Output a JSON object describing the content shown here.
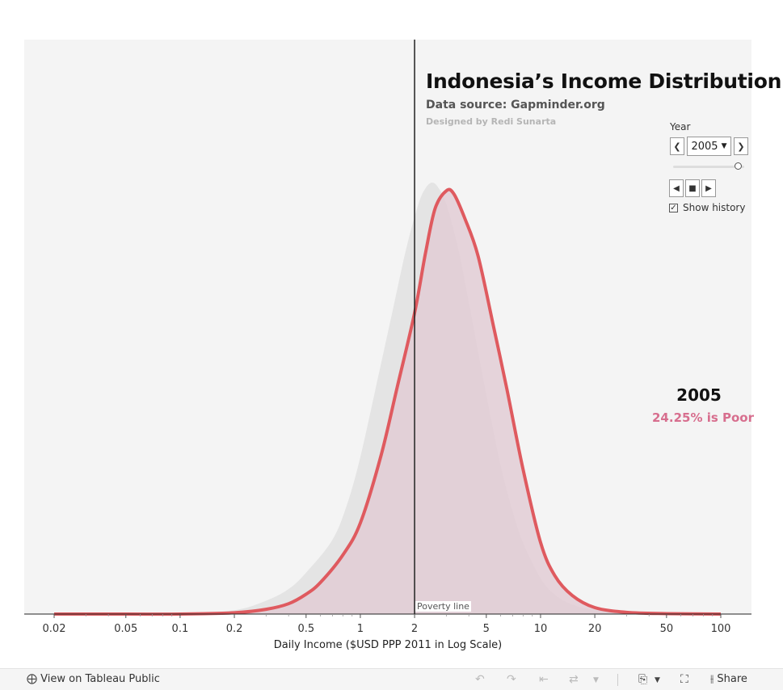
{
  "header": {
    "title": "Indonesia’s Income Distribution",
    "subtitle": "Data source: Gapminder.org",
    "credit": "Designed by Redi Sunarta"
  },
  "controls": {
    "year_label": "Year",
    "year_value": "2005",
    "slider_fraction": 0.92,
    "show_history_label": "Show history",
    "show_history_checked": true
  },
  "summary": {
    "year": "2005",
    "poor_text": "24.25% is Poor"
  },
  "toolbar": {
    "view_label": "View on Tableau Public",
    "share_label": "Share"
  },
  "colors": {
    "plot_background": "#f4f4f4",
    "history_fill": "#e4e4e4",
    "current_fill": "#e2cdd5",
    "current_line": "#df5a5f",
    "poverty_line": "#222222",
    "poor_text": "#d76e8e"
  },
  "chart_data": {
    "type": "area",
    "xlabel": "Daily Income ($USD PPP 2011 in Log Scale)",
    "ylabel": "",
    "x_scale": "log",
    "xlim": [
      0.015,
      125
    ],
    "x_ticks": [
      0.02,
      0.05,
      0.1,
      0.2,
      0.5,
      1,
      2,
      5,
      10,
      20,
      50,
      100
    ],
    "x_tick_labels": [
      "0.02",
      "0.05",
      "0.1",
      "0.2",
      "0.5",
      "1",
      "2",
      "5",
      "10",
      "20",
      "50",
      "100"
    ],
    "ylim": [
      0,
      1
    ],
    "grid": false,
    "poverty_line": {
      "x": 2,
      "label": "Poverty line"
    },
    "series": [
      {
        "name": "",
        "role": "history",
        "points": [
          [
            0.02,
            0
          ],
          [
            0.05,
            0
          ],
          [
            0.1,
            0.001
          ],
          [
            0.2,
            0.009
          ],
          [
            0.3,
            0.031
          ],
          [
            0.4,
            0.058
          ],
          [
            0.5,
            0.096
          ],
          [
            0.7,
            0.172
          ],
          [
            0.85,
            0.258
          ],
          [
            1,
            0.364
          ],
          [
            1.2,
            0.512
          ],
          [
            1.5,
            0.697
          ],
          [
            1.8,
            0.848
          ],
          [
            2.1,
            0.95
          ],
          [
            2.3,
            0.987
          ],
          [
            2.5,
            1.0
          ],
          [
            2.7,
            0.989
          ],
          [
            3,
            0.95
          ],
          [
            3.5,
            0.845
          ],
          [
            4,
            0.722
          ],
          [
            5,
            0.508
          ],
          [
            6,
            0.345
          ],
          [
            7,
            0.238
          ],
          [
            8,
            0.165
          ],
          [
            10,
            0.083
          ],
          [
            12,
            0.045
          ],
          [
            15,
            0.022
          ],
          [
            20,
            0.009
          ],
          [
            30,
            0.003
          ],
          [
            50,
            0.001
          ],
          [
            100,
            0
          ]
        ]
      },
      {
        "name": "",
        "role": "current",
        "points": [
          [
            0.02,
            0
          ],
          [
            0.05,
            0
          ],
          [
            0.1,
            0
          ],
          [
            0.2,
            0.003
          ],
          [
            0.3,
            0.011
          ],
          [
            0.4,
            0.024
          ],
          [
            0.5,
            0.046
          ],
          [
            0.6,
            0.073
          ],
          [
            0.8,
            0.137
          ],
          [
            1,
            0.211
          ],
          [
            1.3,
            0.366
          ],
          [
            1.6,
            0.525
          ],
          [
            2,
            0.698
          ],
          [
            2.3,
            0.837
          ],
          [
            2.6,
            0.94
          ],
          [
            3,
            0.981
          ],
          [
            3.3,
            0.974
          ],
          [
            3.8,
            0.917
          ],
          [
            4.5,
            0.83
          ],
          [
            5.5,
            0.664
          ],
          [
            6.5,
            0.522
          ],
          [
            8,
            0.335
          ],
          [
            10,
            0.166
          ],
          [
            12,
            0.089
          ],
          [
            15,
            0.043
          ],
          [
            20,
            0.015
          ],
          [
            30,
            0.004
          ],
          [
            50,
            0.001
          ],
          [
            100,
            0
          ]
        ]
      }
    ]
  }
}
